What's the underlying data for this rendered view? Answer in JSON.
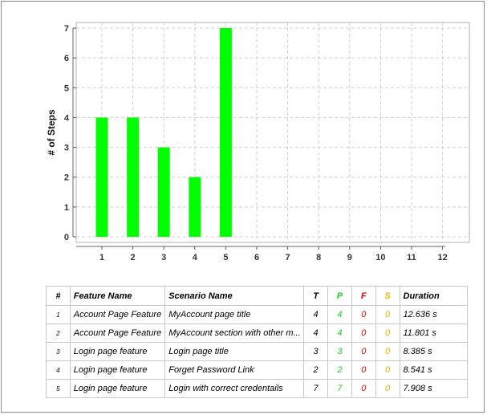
{
  "chart_data": {
    "type": "bar",
    "categories": [
      "1",
      "2",
      "3",
      "4",
      "5",
      "6",
      "7",
      "8",
      "9",
      "10",
      "11",
      "12"
    ],
    "series": [
      {
        "values": [
          4,
          4,
          3,
          2,
          7,
          null,
          null,
          null,
          null,
          null,
          null,
          null
        ]
      }
    ],
    "xlabel": "",
    "ylabel": "# of Steps",
    "ylim": [
      0,
      7
    ],
    "yticks": [
      0,
      1,
      2,
      3,
      4,
      5,
      6,
      7
    ],
    "grid": true,
    "bar_color": "#00ff00"
  },
  "table": {
    "headers": {
      "num": "#",
      "feature": "Feature Name",
      "scenario": "Scenario Name",
      "t": "T",
      "p": "P",
      "f": "F",
      "s": "S",
      "duration": "Duration"
    },
    "rows": [
      {
        "num": "1",
        "feature": "Account Page Feature",
        "scenario": "MyAccount page title",
        "t": "4",
        "p": "4",
        "f": "0",
        "s": "0",
        "duration": "12.636 s"
      },
      {
        "num": "2",
        "feature": "Account Page Feature",
        "scenario": "MyAccount section with other m...",
        "t": "4",
        "p": "4",
        "f": "0",
        "s": "0",
        "duration": "11.801 s"
      },
      {
        "num": "3",
        "feature": "Login page feature",
        "scenario": "Login page title",
        "t": "3",
        "p": "3",
        "f": "0",
        "s": "0",
        "duration": "8.385 s"
      },
      {
        "num": "4",
        "feature": "Login page feature",
        "scenario": "Forget Password Link",
        "t": "2",
        "p": "2",
        "f": "0",
        "s": "0",
        "duration": "8.541 s"
      },
      {
        "num": "5",
        "feature": "Login page feature",
        "scenario": "Login with correct credentails",
        "t": "7",
        "p": "7",
        "f": "0",
        "s": "0",
        "duration": "7.908 s"
      }
    ]
  },
  "colors": {
    "passed": "#22cc22",
    "failed": "#e00000",
    "skipped": "#f0b000"
  }
}
